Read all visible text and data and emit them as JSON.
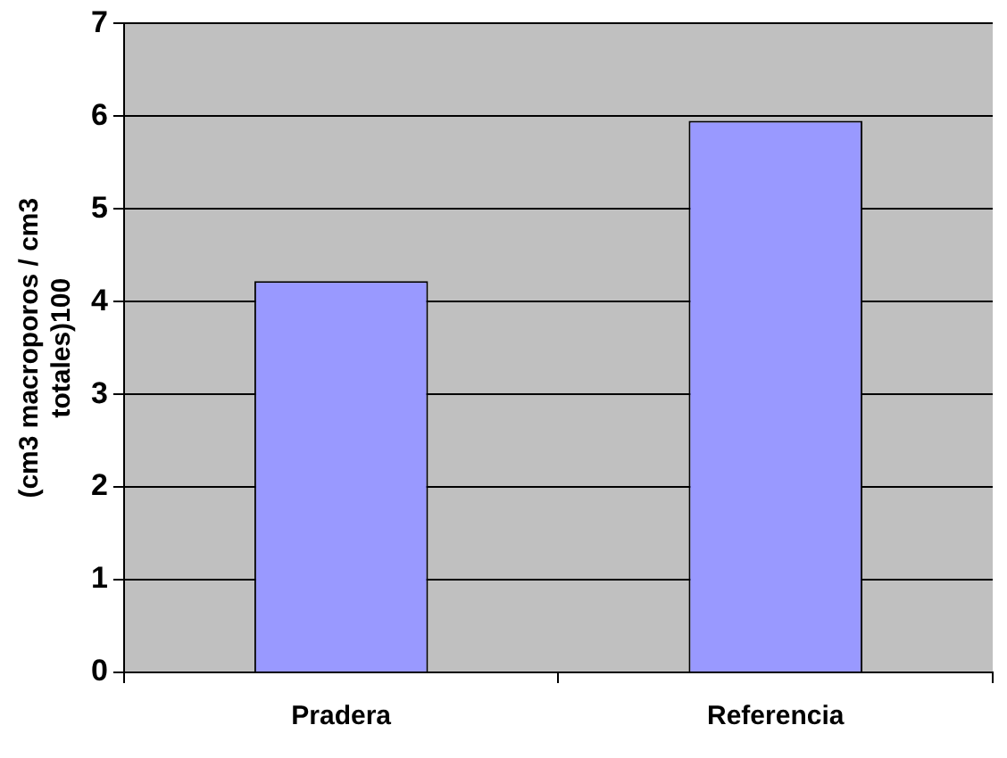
{
  "chart_data": {
    "type": "bar",
    "ylabel": "(cm3 macroporos / cm3 totales)100",
    "categories": [
      "Pradera",
      "Referencia"
    ],
    "values": [
      4.22,
      5.95
    ],
    "color": "#9999ff",
    "ylim": [
      0,
      7
    ],
    "yticks": [
      0,
      1,
      2,
      3,
      4,
      5,
      6,
      7
    ],
    "grid": "y"
  }
}
